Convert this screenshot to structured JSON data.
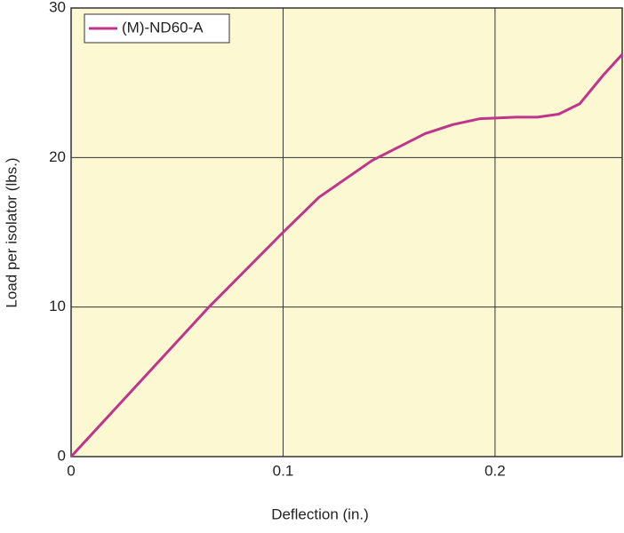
{
  "chart_data": {
    "type": "line",
    "x_label": "Deflection (in.)",
    "y_label": "Load per isolator (lbs.)",
    "x": [
      0,
      0.065,
      0.1,
      0.117,
      0.142,
      0.167,
      0.18,
      0.193,
      0.21,
      0.22,
      0.23,
      0.24,
      0.251,
      0.26
    ],
    "series": [
      {
        "name": "(M)-ND60-A",
        "color": "#c0348c",
        "values": [
          0,
          10,
          15,
          17.35,
          19.8,
          21.6,
          22.2,
          22.6,
          22.7,
          22.7,
          22.9,
          23.6,
          25.5,
          26.9
        ]
      }
    ],
    "xlim": [
      0,
      0.26
    ],
    "ylim": [
      0,
      30
    ],
    "xticks": [
      0,
      0.1,
      0.2
    ],
    "yticks": [
      0,
      10,
      20,
      30
    ],
    "grid": true,
    "legend": "upper left",
    "background": "#fbf8d2"
  }
}
